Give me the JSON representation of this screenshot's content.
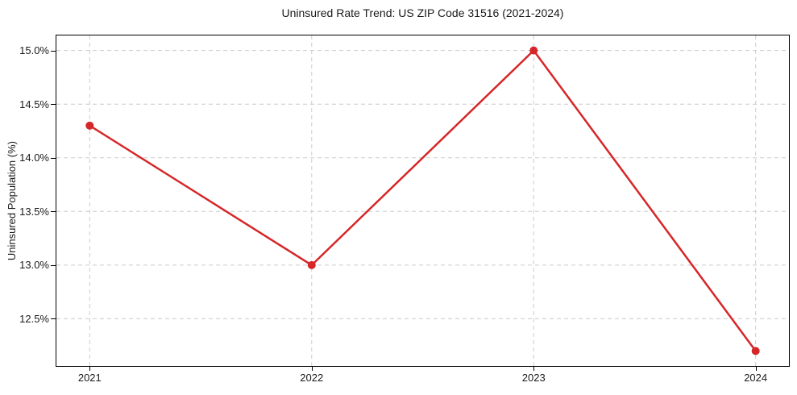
{
  "chart_data": {
    "type": "line",
    "title": "Uninsured Rate Trend: US ZIP Code 31516 (2021-2024)",
    "xlabel": "",
    "ylabel": "Uninsured Population (%)",
    "x": [
      2021,
      2022,
      2023,
      2024
    ],
    "xtick_labels": [
      "2021",
      "2022",
      "2023",
      "2024"
    ],
    "values": [
      14.3,
      13.0,
      15.0,
      12.2
    ],
    "yticks": [
      12.5,
      13.0,
      13.5,
      14.0,
      14.5,
      15.0
    ],
    "ytick_labels": [
      "12.5%",
      "13.0%",
      "13.5%",
      "14.0%",
      "14.5%",
      "15.0%"
    ],
    "xlim": [
      2020.85,
      2024.15
    ],
    "ylim": [
      12.06,
      15.14
    ],
    "grid": true,
    "grid_style": "dashed",
    "legend": "none",
    "line_color": "#d62728",
    "marker": "circle",
    "marker_color": "#d62728",
    "grid_color": "#cccccc",
    "axis_color": "#000000",
    "text_color": "#1a1a1a",
    "background_color": "#ffffff"
  }
}
